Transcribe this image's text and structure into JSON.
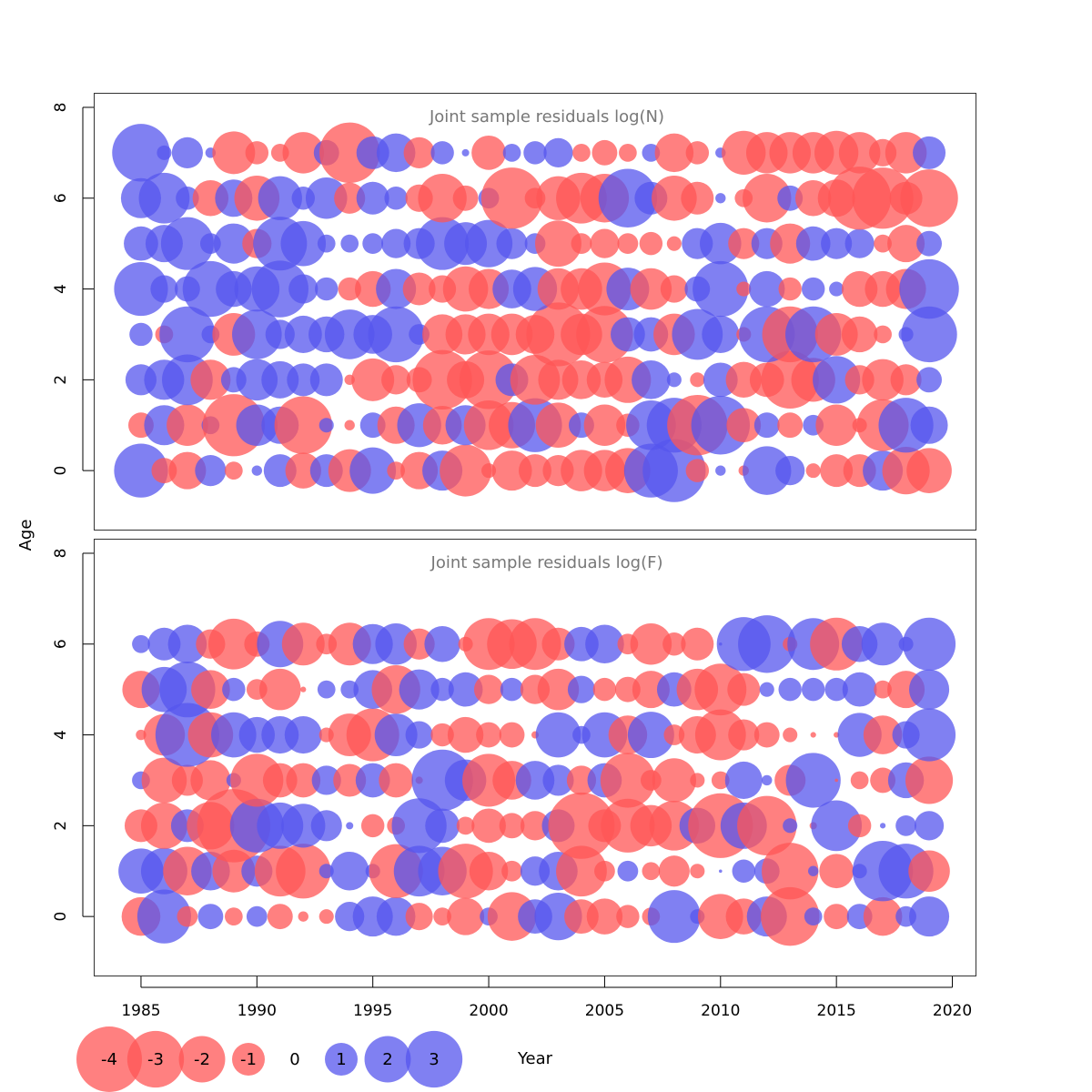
{
  "chart_data": {
    "type": "scatter",
    "subtype": "bubble",
    "xlabel": "Year",
    "ylabel": "Age",
    "xlim": [
      1983,
      2021
    ],
    "x_ticks": [
      1985,
      1990,
      1995,
      2000,
      2005,
      2010,
      2015,
      2020
    ],
    "colors": {
      "negative": "#ff5555",
      "positive": "#5555ee",
      "opacity": 0.75
    },
    "size_rule": "circle area proportional to |residual|",
    "legend": {
      "position": "bottom",
      "entries": [
        {
          "label": "-4",
          "value": -4
        },
        {
          "label": "-3",
          "value": -3
        },
        {
          "label": "-2",
          "value": -2
        },
        {
          "label": "-1",
          "value": -1
        },
        {
          "label": "0",
          "value": 0
        },
        {
          "label": "1",
          "value": 1
        },
        {
          "label": "2",
          "value": 2
        },
        {
          "label": "3",
          "value": 3
        }
      ]
    },
    "years": [
      1985,
      1986,
      1987,
      1988,
      1989,
      1990,
      1991,
      1992,
      1993,
      1994,
      1995,
      1996,
      1997,
      1998,
      1999,
      2000,
      2001,
      2002,
      2003,
      2004,
      2005,
      2006,
      2007,
      2008,
      2009,
      2010,
      2011,
      2012,
      2013,
      2014,
      2015,
      2016,
      2017,
      2018,
      2019
    ],
    "panels": [
      {
        "title": "Joint sample residuals log(N)",
        "ylim": [
          -1.3,
          8.3
        ],
        "y_ticks": [
          0,
          2,
          4,
          6,
          8
        ],
        "ages": [
          0,
          1,
          2,
          3,
          4,
          5,
          6,
          7
        ],
        "residuals": [
          [
            2.7,
            -0.6,
            -1.3,
            0.9,
            -0.3,
            0.1,
            1.0,
            -1.2,
            1.0,
            -1.7,
            2.0,
            -0.3,
            -1.3,
            1.5,
            -2.5,
            -0.2,
            -1.5,
            -1.0,
            -0.9,
            -1.6,
            -1.6,
            -1.9,
            2.7,
            3.7,
            -0.5,
            0.1,
            -0.1,
            2.2,
            0.8,
            -0.2,
            -1.0,
            -1.0,
            1.5,
            -2.1,
            -1.9
          ],
          [
            -0.6,
            1.5,
            -1.6,
            0.3,
            -3.6,
            1.6,
            1.3,
            -3.1,
            0.2,
            -0.1,
            0.6,
            -1.3,
            1.8,
            -1.4,
            1.5,
            -2.3,
            -2.0,
            2.7,
            -1.9,
            0.6,
            -1.6,
            -0.5,
            2.3,
            2.8,
            -3.4,
            3.2,
            -1.1,
            0.6,
            -0.6,
            0.4,
            -1.6,
            -0.2,
            -2.5,
            2.8,
            1.3
          ],
          [
            0.9,
            1.5,
            2.4,
            -1.5,
            0.6,
            1.6,
            1.3,
            1.0,
            1.0,
            -0.1,
            -1.7,
            -0.8,
            -0.6,
            -3.3,
            -1.3,
            -3.2,
            1.0,
            -2.3,
            -1.5,
            -1.4,
            -1.2,
            -2.0,
            1.4,
            0.2,
            -0.2,
            1.1,
            -1.2,
            -1.1,
            -3.1,
            -1.8,
            2.1,
            -0.8,
            -1.6,
            -0.9,
            0.6
          ],
          [
            0.5,
            -0.3,
            2.9,
            0.3,
            -1.7,
            2.3,
            0.8,
            1.3,
            1.2,
            2.3,
            1.4,
            2.9,
            0.4,
            -1.5,
            -1.5,
            -1.6,
            -1.6,
            -1.4,
            -3.8,
            -1.6,
            -3.0,
            1.1,
            1.1,
            -1.6,
            2.4,
            1.3,
            -0.2,
            2.9,
            -2.9,
            2.9,
            -1.7,
            -1.2,
            -0.3,
            0.2,
            2.9
          ],
          [
            2.7,
            0.7,
            0.6,
            2.9,
            1.2,
            1.9,
            3.0,
            0.8,
            0.5,
            -0.5,
            -1.2,
            1.5,
            -1.0,
            -0.7,
            -1.9,
            -1.5,
            1.4,
            1.8,
            -1.6,
            -1.6,
            -2.6,
            1.7,
            -1.6,
            -0.7,
            0.6,
            2.9,
            -0.2,
            1.2,
            -0.5,
            0.5,
            0.2,
            -1.2,
            -1.2,
            -1.5,
            3.3
          ],
          [
            1.1,
            1.3,
            2.6,
            0.4,
            1.5,
            -0.8,
            2.7,
            1.9,
            0.3,
            0.3,
            0.4,
            0.8,
            0.9,
            2.6,
            1.7,
            2.1,
            0.9,
            0.4,
            -2.0,
            -0.4,
            -0.8,
            -0.4,
            -0.5,
            -0.2,
            0.9,
            1.6,
            -0.9,
            0.9,
            -1.5,
            1.1,
            0.9,
            0.8,
            -0.3,
            -1.3,
            0.6
          ],
          [
            1.5,
            2.4,
            0.5,
            -1.2,
            1.3,
            -1.9,
            1.8,
            0.5,
            1.6,
            -0.9,
            1.0,
            0.5,
            -0.7,
            -2.2,
            -0.6,
            0.4,
            -3.5,
            -0.4,
            -1.8,
            -2.4,
            -2.2,
            3.2,
            1.0,
            -1.9,
            -1.0,
            0.1,
            -0.3,
            -2.2,
            0.6,
            -1.2,
            -1.3,
            -3.7,
            -3.5,
            -1.0,
            -3.1
          ],
          [
            3.1,
            0.2,
            0.9,
            0.1,
            -1.7,
            -0.5,
            -0.3,
            -1.6,
            0.6,
            -3.4,
            1.0,
            1.4,
            -0.9,
            0.5,
            0.05,
            -1.1,
            0.3,
            0.5,
            0.8,
            -0.3,
            -0.6,
            -0.3,
            0.3,
            -1.4,
            -0.5,
            0.1,
            -1.8,
            -1.6,
            -1.6,
            -1.6,
            -1.8,
            -1.6,
            -0.7,
            -1.6,
            1.0
          ]
        ]
      },
      {
        "title": "Joint sample residuals log(F)",
        "ylim": [
          -1.3,
          8.3
        ],
        "y_ticks": [
          0,
          2,
          4,
          6,
          8
        ],
        "ages": [
          0,
          1,
          2,
          3,
          4,
          5,
          6
        ],
        "residuals": [
          [
            -1.4,
            2.7,
            -0.4,
            0.6,
            -0.3,
            0.4,
            -0.6,
            -0.1,
            -0.2,
            0.8,
            1.5,
            1.4,
            -0.7,
            -0.3,
            -1.3,
            0.3,
            -2.2,
            1.1,
            2.1,
            -1.1,
            -1.2,
            -0.5,
            -0.3,
            2.6,
            0.2,
            -1.9,
            -1.2,
            1.5,
            -3.2,
            0.3,
            -0.6,
            0.6,
            -1.4,
            0.4,
            1.5
          ],
          [
            1.9,
            2.0,
            -2.2,
            1.4,
            -1.7,
            0.9,
            -2.4,
            -2.8,
            0.2,
            1.4,
            0.2,
            -2.7,
            2.4,
            2.2,
            -2.8,
            -1.4,
            -0.4,
            0.8,
            1.4,
            -2.4,
            -0.4,
            0.4,
            -0.3,
            -0.9,
            -0.2,
            0.01,
            0.5,
            0.6,
            -3.0,
            0.1,
            -1.1,
            0.2,
            3.4,
            2.8,
            -1.6
          ],
          [
            -1.0,
            -2.0,
            1.0,
            -2.1,
            -5.0,
            2.7,
            2.0,
            1.8,
            0.9,
            0.05,
            -0.5,
            -0.3,
            2.8,
            1.1,
            -0.3,
            -1.1,
            -0.6,
            -0.8,
            1.0,
            -4.1,
            -1.0,
            -2.7,
            -1.6,
            -2.3,
            1.2,
            -3.9,
            2.0,
            -3.3,
            0.2,
            -0.05,
            2.4,
            -0.5,
            0.03,
            0.4,
            0.8
          ],
          [
            0.3,
            -1.9,
            -0.9,
            -1.5,
            0.2,
            -2.6,
            -1.1,
            -1.1,
            0.8,
            -1.0,
            1.1,
            -1.1,
            -0.05,
            3.5,
            1.6,
            -2.6,
            -1.4,
            1.4,
            0.9,
            -0.8,
            1.1,
            -2.8,
            -0.4,
            -1.8,
            -0.2,
            -0.3,
            1.3,
            0.1,
            -0.9,
            2.8,
            -0.01,
            -0.3,
            -0.6,
            1.2,
            -2.1
          ],
          [
            -0.1,
            -1.6,
            3.8,
            -1.9,
            1.9,
            1.2,
            1.3,
            1.3,
            -0.2,
            -1.7,
            -2.6,
            1.7,
            0.7,
            -0.5,
            -1.2,
            -0.6,
            -0.6,
            -0.05,
            1.9,
            0.3,
            1.9,
            -1.4,
            2.0,
            -0.4,
            -1.3,
            -2.4,
            -0.9,
            -0.6,
            -0.2,
            -0.03,
            -0.03,
            1.8,
            -1.4,
            0.7,
            2.6
          ],
          [
            -1.3,
            1.9,
            2.9,
            -1.4,
            0.5,
            -0.4,
            -1.6,
            -0.03,
            0.3,
            0.3,
            1.4,
            -2.2,
            1.5,
            0.5,
            1.1,
            -0.8,
            0.5,
            -0.8,
            -1.6,
            0.7,
            -0.5,
            -0.6,
            -1.3,
            1.1,
            -1.6,
            -2.5,
            -1.0,
            0.2,
            0.5,
            0.5,
            0.5,
            1.1,
            -0.3,
            -1.3,
            1.5
          ],
          [
            0.3,
            1.0,
            1.4,
            -0.8,
            -2.4,
            -0.6,
            2.0,
            -1.7,
            -0.4,
            -1.7,
            1.5,
            1.6,
            -0.9,
            1.2,
            -0.2,
            -2.5,
            -2.3,
            -2.5,
            -1.0,
            1.1,
            1.4,
            -0.4,
            -1.6,
            -0.5,
            -1.0,
            0.01,
            2.7,
            3.1,
            -0.2,
            2.5,
            -2.6,
            1.2,
            1.7,
            0.2,
            2.6
          ]
        ]
      }
    ]
  }
}
